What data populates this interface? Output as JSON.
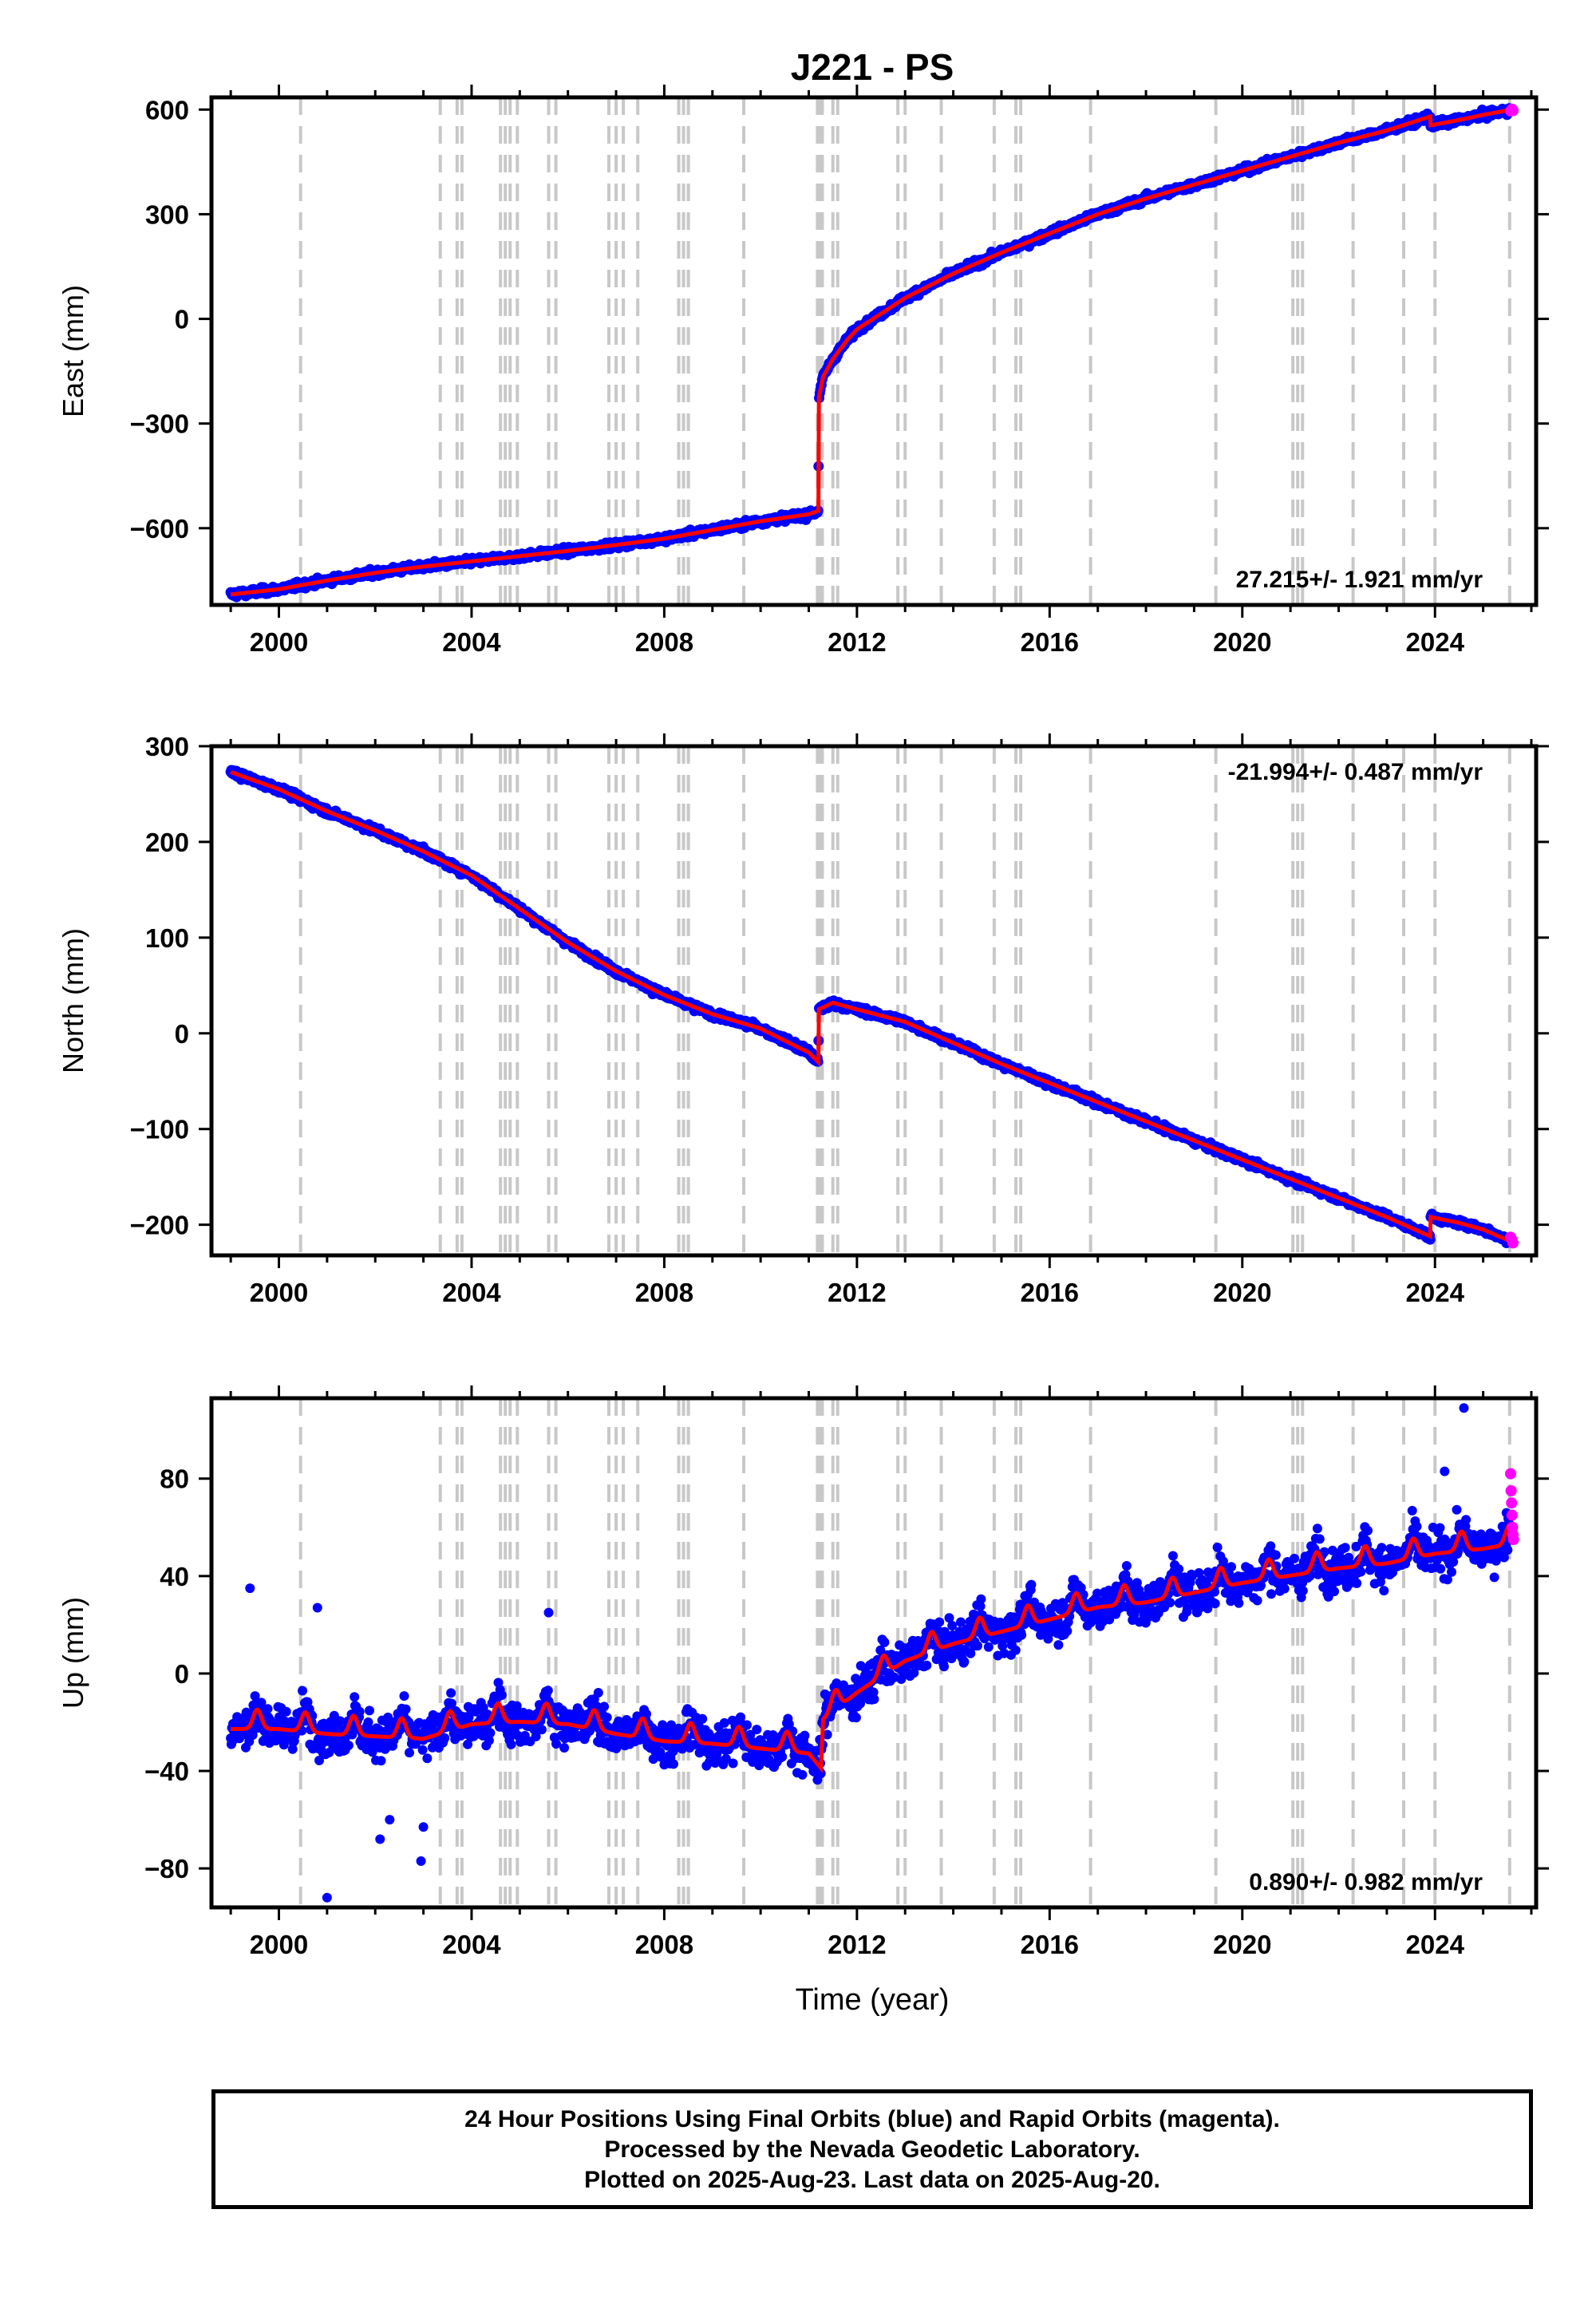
{
  "chart_data": {
    "type": "scatter",
    "title": "J221 - PS",
    "xlabel": "Time (year)",
    "xlim": [
      1998.6,
      2026.1
    ],
    "xticks": [
      2000,
      2004,
      2008,
      2012,
      2016,
      2020,
      2024
    ],
    "xtick_labels": [
      "2000",
      "2004",
      "2008",
      "2012",
      "2016",
      "2020",
      "2024"
    ],
    "grid": false,
    "legend": "none",
    "colors": {
      "final_orbits": "#0000ff",
      "rapid_orbits": "#ff00ff",
      "model": "#ff0000",
      "breaks": "#c8c8c8"
    },
    "break_epochs": [
      2000.45,
      2003.35,
      2003.7,
      2003.8,
      2004.6,
      2004.7,
      2004.8,
      2004.95,
      2005.6,
      2005.75,
      2006.85,
      2007.0,
      2007.15,
      2007.45,
      2008.3,
      2008.4,
      2008.5,
      2009.65,
      2011.18,
      2011.23,
      2011.28,
      2011.5,
      2011.6,
      2012.85,
      2013.0,
      2013.75,
      2014.85,
      2015.3,
      2015.4,
      2016.85,
      2019.45,
      2021.05,
      2021.15,
      2021.25,
      2022.3,
      2023.35,
      2024.0,
      2025.55
    ],
    "panels": [
      {
        "ylabel": "East (mm)",
        "ylim": [
          -820,
          635
        ],
        "yticks": [
          600,
          300,
          0,
          -300,
          -600
        ],
        "ytick_labels": [
          "600",
          "300",
          "0",
          "−300",
          "−600"
        ],
        "rate_text": "27.215+/- 1.921 mm/yr",
        "rate_position": "bottom-right",
        "model": {
          "x": [
            1999.0,
            2000.0,
            2001.0,
            2002.0,
            2003.0,
            2004.0,
            2005.0,
            2006.0,
            2007.0,
            2008.0,
            2009.0,
            2010.0,
            2011.0,
            2011.2,
            2011.21,
            2011.3,
            2011.5,
            2011.8,
            2012.0,
            2012.5,
            2013.0,
            2014.0,
            2015.0,
            2016.0,
            2017.0,
            2018.0,
            2019.0,
            2020.0,
            2021.0,
            2022.0,
            2023.0,
            2023.9,
            2023.91,
            2024.5,
            2025.0,
            2025.6
          ],
          "y": [
            -790,
            -775,
            -750,
            -728,
            -710,
            -695,
            -680,
            -665,
            -648,
            -630,
            -605,
            -580,
            -560,
            -550,
            -225,
            -165,
            -115,
            -60,
            -30,
            15,
            60,
            130,
            190,
            245,
            300,
            345,
            385,
            425,
            465,
            505,
            540,
            580,
            555,
            570,
            585,
            600
          ]
        },
        "rapid": {
          "x": [
            2025.57,
            2025.6,
            2025.62
          ],
          "y": [
            596,
            601,
            597
          ]
        },
        "noise_mm": 8
      },
      {
        "ylabel": "North (mm)",
        "ylim": [
          -232,
          300
        ],
        "yticks": [
          300,
          200,
          100,
          0,
          -100,
          -200
        ],
        "ytick_labels": [
          "300",
          "200",
          "100",
          "0",
          "−100",
          "−200"
        ],
        "rate_text": "-21.994+/- 0.487 mm/yr",
        "rate_position": "top-right",
        "model": {
          "x": [
            1999.0,
            2000.0,
            2001.0,
            2002.0,
            2003.0,
            2004.0,
            2005.0,
            2006.0,
            2007.0,
            2008.0,
            2009.0,
            2010.0,
            2011.0,
            2011.2,
            2011.21,
            2011.5,
            2012.0,
            2013.0,
            2014.0,
            2015.0,
            2016.0,
            2017.0,
            2018.0,
            2019.0,
            2020.0,
            2021.0,
            2022.0,
            2023.0,
            2023.9,
            2023.91,
            2024.5,
            2025.0,
            2025.6
          ],
          "y": [
            273,
            255,
            232,
            212,
            190,
            165,
            130,
            95,
            65,
            40,
            20,
            5,
            -20,
            -30,
            25,
            32,
            25,
            12,
            -10,
            -32,
            -52,
            -72,
            -92,
            -112,
            -132,
            -152,
            -172,
            -192,
            -212,
            -192,
            -198,
            -205,
            -218
          ]
        },
        "rapid": {
          "x": [
            2025.57,
            2025.6,
            2025.62
          ],
          "y": [
            -213,
            -216,
            -219
          ]
        },
        "noise_mm": 3
      },
      {
        "ylabel": "Up (mm)",
        "ylim": [
          -96,
          113
        ],
        "yticks": [
          80,
          40,
          0,
          -40,
          -80
        ],
        "ytick_labels": [
          "80",
          "40",
          "0",
          "−40",
          "−80"
        ],
        "rate_text": "0.890+/- 0.982 mm/yr",
        "rate_position": "bottom-right",
        "model": {
          "x": [
            1999.0,
            2000.0,
            2001.0,
            2002.0,
            2003.0,
            2004.0,
            2005.0,
            2006.0,
            2007.0,
            2008.0,
            2009.0,
            2010.0,
            2011.0,
            2011.25,
            2011.3,
            2012.0,
            2013.0,
            2014.0,
            2015.0,
            2016.0,
            2017.0,
            2018.0,
            2019.0,
            2020.0,
            2021.0,
            2022.0,
            2023.0,
            2024.0,
            2025.0,
            2025.6
          ],
          "y": [
            -20,
            -20,
            -22,
            -23,
            -24,
            -18,
            -17,
            -18,
            -22,
            -25,
            -26,
            -28,
            -30,
            -36,
            -16,
            -5,
            8,
            15,
            20,
            25,
            30,
            32,
            36,
            40,
            43,
            46,
            48,
            52,
            54,
            56
          ]
        },
        "seasonal_amplitude_mm": 8,
        "rapid": {
          "x": [
            2025.57,
            2025.58,
            2025.59,
            2025.6,
            2025.61,
            2025.62,
            2025.63
          ],
          "y": [
            82,
            75,
            70,
            65,
            60,
            57,
            55
          ]
        },
        "outliers": {
          "x": [
            1999.4,
            2000.8,
            2001.0,
            2002.1,
            2002.3,
            2002.95,
            2003.0,
            2005.6,
            2024.6,
            2024.2
          ],
          "y": [
            35,
            27,
            -92,
            -68,
            -60,
            -77,
            -63,
            25,
            109,
            83
          ]
        },
        "noise_mm": 7
      }
    ]
  },
  "footer": {
    "line1": "24 Hour Positions Using Final Orbits (blue) and Rapid Orbits (magenta).",
    "line2": "Processed by the Nevada Geodetic Laboratory.",
    "line3": "Plotted on 2025-Aug-23. Last data on 2025-Aug-20."
  }
}
